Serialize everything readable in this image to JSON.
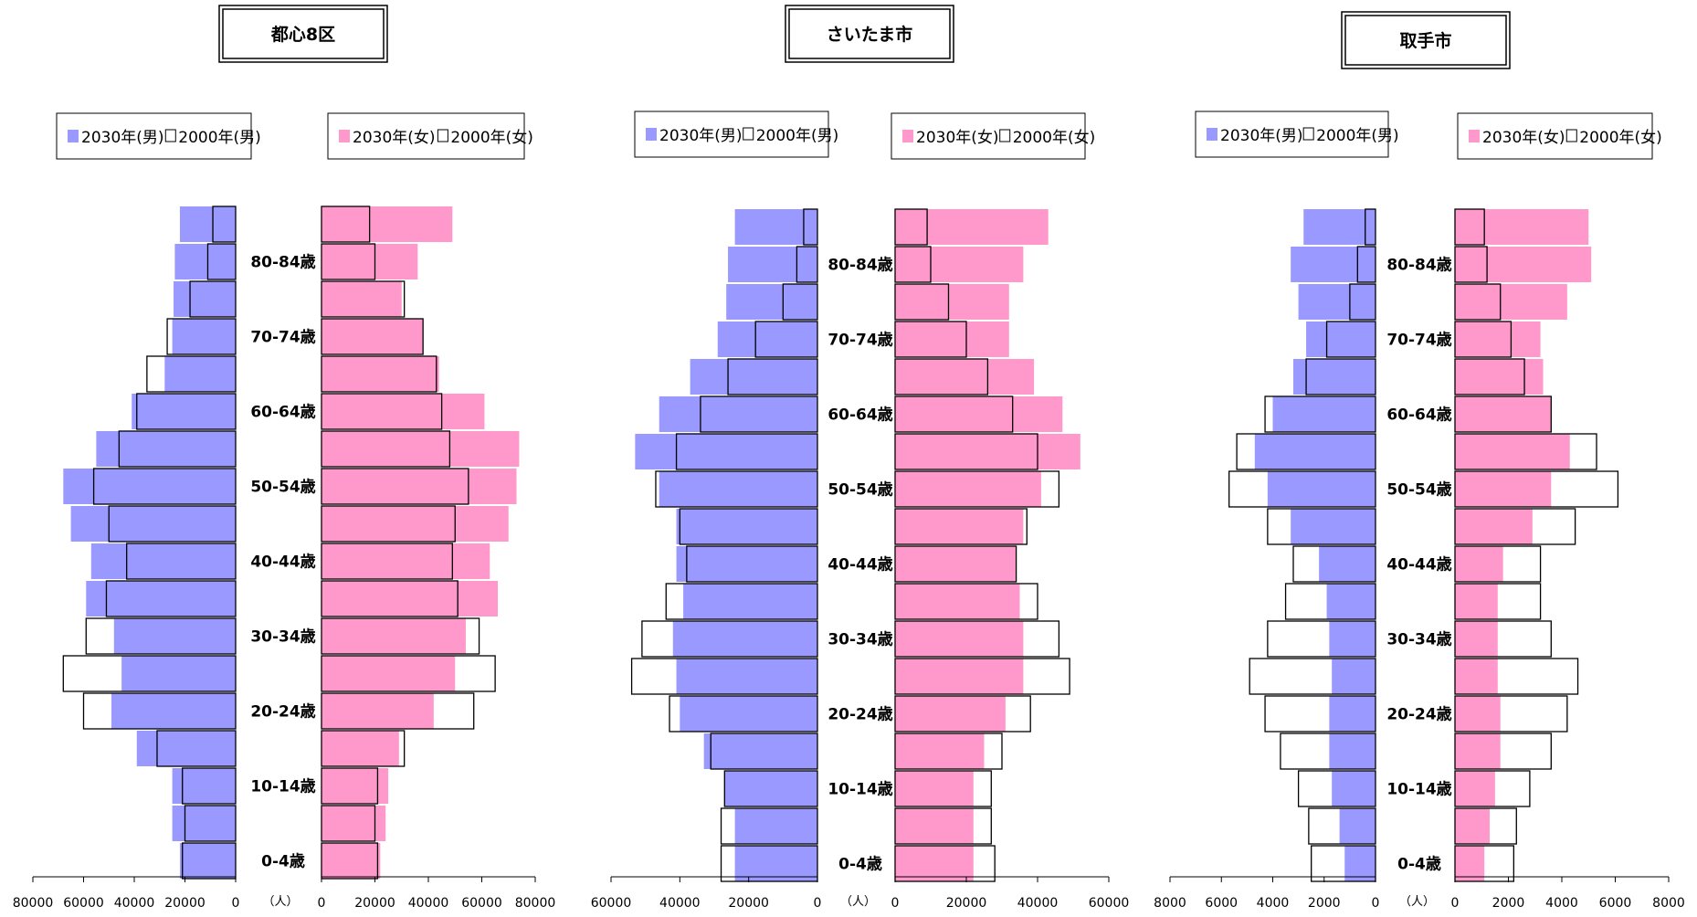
{
  "colors": {
    "male_2030": "#9999ff",
    "female_2030": "#ff99cc",
    "outline_2000": "#000000",
    "background": "#ffffff"
  },
  "chart_data": [
    {
      "type": "bar",
      "orientation": "population-pyramid",
      "title": "都心8区",
      "unit": "（人）",
      "age_label_text": [
        "80-84歳",
        "70-74歳",
        "60-64歳",
        "50-54歳",
        "40-44歳",
        "30-34歳",
        "20-24歳",
        "10-14歳",
        "0-4歳"
      ],
      "male_ticks": [
        "80000",
        "60000",
        "40000",
        "20000",
        "0"
      ],
      "female_ticks": [
        "0",
        "20000",
        "40000",
        "60000",
        "80000"
      ],
      "axis_max": 80000,
      "legend_male": [
        "2030年(男)",
        "2000年(男)"
      ],
      "legend_female": [
        "2030年(女)",
        "2000年(女)"
      ],
      "male_2030": [
        22000,
        24000,
        24500,
        25000,
        28000,
        41000,
        55000,
        68000,
        65000,
        57000,
        59000,
        48000,
        45000,
        49000,
        39000,
        25000,
        25000,
        22000
      ],
      "male_2000": [
        9000,
        11000,
        18000,
        27000,
        35000,
        39000,
        46000,
        56000,
        50000,
        43000,
        51000,
        59000,
        68000,
        60000,
        31000,
        21000,
        20000,
        21000
      ],
      "female_2030": [
        49000,
        36000,
        30000,
        38000,
        44000,
        61000,
        74000,
        73000,
        70000,
        63000,
        66000,
        54000,
        50000,
        42000,
        29000,
        25000,
        24000,
        22000
      ],
      "female_2000": [
        18000,
        20000,
        31000,
        38000,
        43000,
        45000,
        48000,
        55000,
        50000,
        49000,
        51000,
        59000,
        65000,
        57000,
        31000,
        21000,
        20000,
        21000
      ]
    },
    {
      "type": "bar",
      "orientation": "population-pyramid",
      "title": "さいたま市",
      "unit": "（人）",
      "age_label_text": [
        "80-84歳",
        "70-74歳",
        "60-64歳",
        "50-54歳",
        "40-44歳",
        "30-34歳",
        "20-24歳",
        "10-14歳",
        "0-4歳"
      ],
      "male_ticks": [
        "60000",
        "40000",
        "20000",
        "0"
      ],
      "female_ticks": [
        "0",
        "20000",
        "40000",
        "60000"
      ],
      "axis_max": 60000,
      "legend_male": [
        "2030年(男)",
        "2000年(男)"
      ],
      "legend_female": [
        "2030年(女)",
        "2000年(女)"
      ],
      "male_2030": [
        24000,
        26000,
        26500,
        29000,
        37000,
        46000,
        53000,
        46000,
        41000,
        41000,
        39000,
        42000,
        41000,
        40000,
        33000,
        27000,
        24000,
        24000
      ],
      "male_2000": [
        4000,
        6000,
        10000,
        18000,
        26000,
        34000,
        41000,
        47000,
        40000,
        38000,
        44000,
        51000,
        54000,
        43000,
        31000,
        27000,
        28000,
        28000
      ],
      "female_2030": [
        43000,
        36000,
        32000,
        32000,
        39000,
        47000,
        52000,
        41000,
        36000,
        34000,
        35000,
        36000,
        36000,
        31000,
        25000,
        22000,
        22000,
        22000
      ],
      "female_2000": [
        9000,
        10000,
        15000,
        20000,
        26000,
        33000,
        40000,
        46000,
        37000,
        34000,
        40000,
        46000,
        49000,
        38000,
        30000,
        27000,
        27000,
        28000
      ]
    },
    {
      "type": "bar",
      "orientation": "population-pyramid",
      "title": "取手市",
      "unit": "（人）",
      "age_label_text": [
        "80-84歳",
        "70-74歳",
        "60-64歳",
        "50-54歳",
        "40-44歳",
        "30-34歳",
        "20-24歳",
        "10-14歳",
        "0-4歳"
      ],
      "male_ticks": [
        "8000",
        "6000",
        "4000",
        "2000",
        "0"
      ],
      "female_ticks": [
        "0",
        "2000",
        "4000",
        "6000",
        "8000"
      ],
      "axis_max": 8000,
      "legend_male": [
        "2030年(男)",
        "2000年(男)"
      ],
      "legend_female": [
        "2030年(女)",
        "2000年(女)"
      ],
      "male_2030": [
        2800,
        3300,
        3000,
        2700,
        3200,
        4000,
        4700,
        4200,
        3300,
        2200,
        1900,
        1800,
        1700,
        1800,
        1800,
        1700,
        1400,
        1200
      ],
      "male_2000": [
        400,
        700,
        1000,
        1900,
        2700,
        4300,
        5400,
        5700,
        4200,
        3200,
        3500,
        4200,
        4900,
        4300,
        3700,
        3000,
        2600,
        2500
      ],
      "female_2030": [
        5000,
        5100,
        4200,
        3200,
        3300,
        3600,
        4300,
        3600,
        2900,
        1800,
        1600,
        1600,
        1600,
        1700,
        1700,
        1500,
        1300,
        1100
      ],
      "female_2000": [
        1100,
        1200,
        1700,
        2100,
        2600,
        3600,
        5300,
        6100,
        4500,
        3200,
        3200,
        3600,
        4600,
        4200,
        3600,
        2800,
        2300,
        2200
      ]
    }
  ]
}
